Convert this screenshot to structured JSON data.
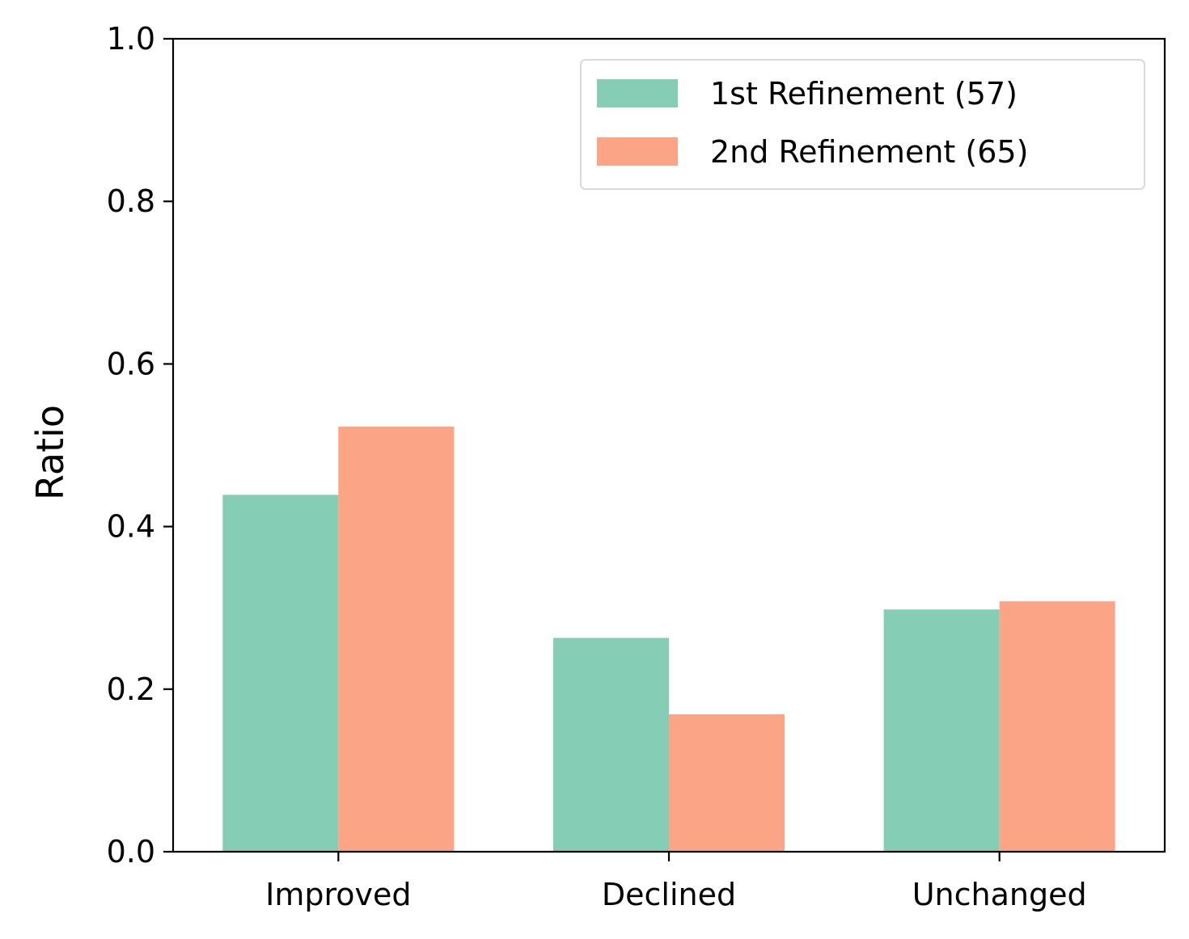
{
  "chart_data": {
    "type": "bar",
    "title": "",
    "xlabel": "",
    "ylabel": "Ratio",
    "categories": [
      "Improved",
      "Declined",
      "Unchanged"
    ],
    "series": [
      {
        "name": "1st Refinement (57)",
        "color": "#86cdb6",
        "values": [
          0.439,
          0.263,
          0.298
        ]
      },
      {
        "name": "2nd Refinement (65)",
        "color": "#fca586",
        "values": [
          0.523,
          0.169,
          0.308
        ]
      }
    ],
    "ylim": [
      0,
      1.0
    ],
    "yticks": [
      "0.0",
      "0.2",
      "0.4",
      "0.6",
      "0.8",
      "1.0"
    ],
    "grid": false,
    "legend_position": "top-right"
  }
}
